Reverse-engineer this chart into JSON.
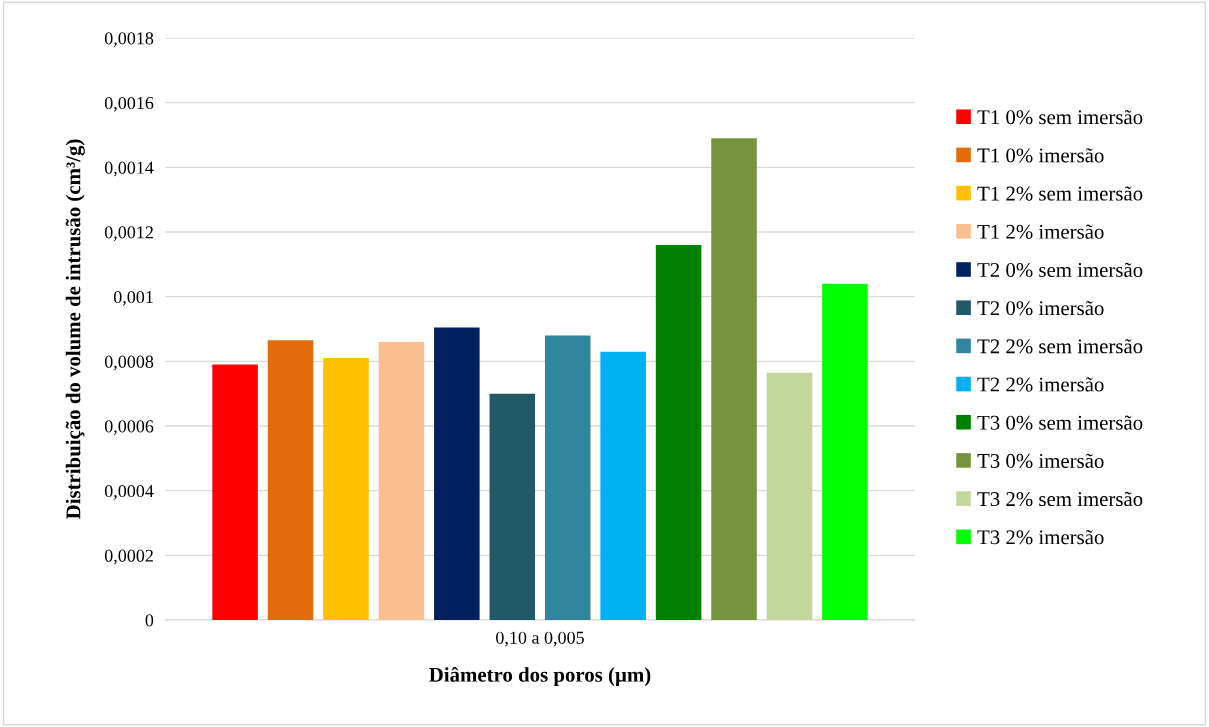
{
  "chart_data": {
    "type": "bar",
    "xlabel": "Diâmetro dos poros (µm)",
    "ylabel": "Distribuição do volume de intrusão (cm³/g)",
    "categories": [
      "0,10 a 0,005"
    ],
    "series": [
      {
        "name": "T1 0% sem imersão",
        "color": "#ff0000",
        "values": [
          0.00079
        ]
      },
      {
        "name": "T1 0% imersão",
        "color": "#e36c0a",
        "values": [
          0.000865
        ]
      },
      {
        "name": "T1 2% sem imersão",
        "color": "#ffc000",
        "values": [
          0.00081
        ]
      },
      {
        "name": "T1 2% imersão",
        "color": "#f9bf8f",
        "values": [
          0.00086
        ]
      },
      {
        "name": "T2 0% sem imersão",
        "color": "#002060",
        "values": [
          0.000905
        ]
      },
      {
        "name": "T2 0% imersão",
        "color": "#215967",
        "values": [
          0.0007
        ]
      },
      {
        "name": "T2 2% sem imersão",
        "color": "#31859c",
        "values": [
          0.00088
        ]
      },
      {
        "name": "T2 2% imersão",
        "color": "#00b0f0",
        "values": [
          0.00083
        ]
      },
      {
        "name": "T3 0% sem imersão",
        "color": "#008000",
        "values": [
          0.00116
        ]
      },
      {
        "name": "T3 0% imersão",
        "color": "#77933c",
        "values": [
          0.00149
        ]
      },
      {
        "name": "T3 2% sem imersão",
        "color": "#c3d69b",
        "values": [
          0.000765
        ]
      },
      {
        "name": "T3 2% imersão",
        "color": "#00ff00",
        "values": [
          0.00104
        ]
      }
    ],
    "ylim": [
      0,
      0.0018
    ],
    "yticks": [
      0,
      {
        "value": 0.0002,
        "label": "0,0002"
      },
      {
        "value": 0.0004,
        "label": "0,0004"
      },
      {
        "value": 0.0006,
        "label": "0,0006"
      },
      {
        "value": 0.0008,
        "label": "0,0008"
      },
      {
        "value": 0.001,
        "label": "0,001"
      },
      {
        "value": 0.0012,
        "label": "0,0012"
      },
      {
        "value": 0.0014,
        "label": "0,0014"
      },
      {
        "value": 0.0016,
        "label": "0,0016"
      },
      {
        "value": 0.0018,
        "label": "0,0018"
      }
    ],
    "grid": "y",
    "legend": "right"
  }
}
